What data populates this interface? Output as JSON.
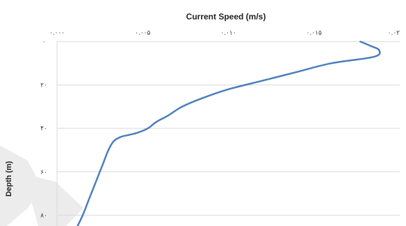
{
  "chart_data": {
    "type": "line",
    "title": "Current Speed (m/s)",
    "xlabel": "Current Speed (m/s)",
    "ylabel": "Depth (m)",
    "x_axis_position": "top",
    "y_inverted": true,
    "xlim": [
      0,
      0.02
    ],
    "ylim": [
      0,
      85
    ],
    "xticks": [
      {
        "value": 0.0,
        "label": "۰.۰۰۰"
      },
      {
        "value": 0.005,
        "label": "۰.۰۰۵"
      },
      {
        "value": 0.01,
        "label": "۰.۰۱۰"
      },
      {
        "value": 0.015,
        "label": "۰.۰۱۵"
      },
      {
        "value": 0.02,
        "label": "۰.۰۲"
      }
    ],
    "yticks": [
      {
        "value": 0,
        "label": "۰"
      },
      {
        "value": 20,
        "label": "۲۰"
      },
      {
        "value": 40,
        "label": "۴۰"
      },
      {
        "value": 60,
        "label": "۶۰"
      },
      {
        "value": 80,
        "label": "۸۰"
      }
    ],
    "grid": true,
    "series": [
      {
        "color": "#4a7ebb",
        "points": [
          {
            "x": 0.0177,
            "y": 0
          },
          {
            "x": 0.0183,
            "y": 2
          },
          {
            "x": 0.0188,
            "y": 4
          },
          {
            "x": 0.0185,
            "y": 7
          },
          {
            "x": 0.016,
            "y": 10
          },
          {
            "x": 0.014,
            "y": 14
          },
          {
            "x": 0.012,
            "y": 18
          },
          {
            "x": 0.01,
            "y": 22
          },
          {
            "x": 0.0085,
            "y": 26
          },
          {
            "x": 0.0073,
            "y": 30
          },
          {
            "x": 0.0065,
            "y": 34
          },
          {
            "x": 0.0058,
            "y": 37
          },
          {
            "x": 0.0053,
            "y": 40
          },
          {
            "x": 0.0047,
            "y": 42
          },
          {
            "x": 0.0042,
            "y": 43
          },
          {
            "x": 0.0037,
            "y": 44
          },
          {
            "x": 0.0033,
            "y": 46
          },
          {
            "x": 0.003,
            "y": 50
          },
          {
            "x": 0.0027,
            "y": 56
          },
          {
            "x": 0.0023,
            "y": 64
          },
          {
            "x": 0.0019,
            "y": 72
          },
          {
            "x": 0.0015,
            "y": 80
          },
          {
            "x": 0.0012,
            "y": 85
          }
        ]
      }
    ]
  }
}
